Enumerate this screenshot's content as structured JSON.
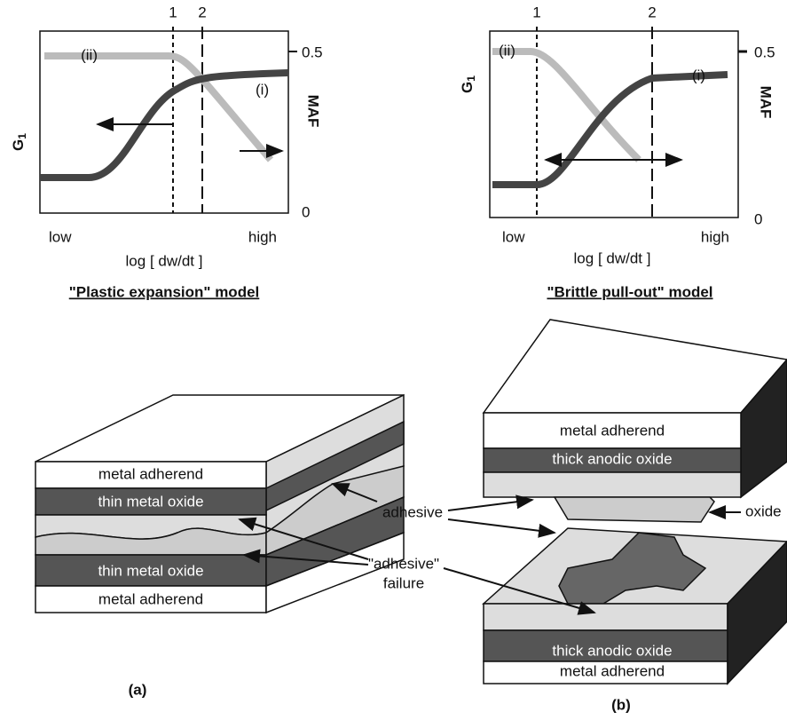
{
  "panels": [
    {
      "graph": {
        "markers": [
          "1",
          "2"
        ],
        "right_ticks": [
          "0.5",
          "0"
        ],
        "y_label": "G",
        "y_label_sub": "1",
        "y2_label": "MAF",
        "curve_labels": [
          "(ii)",
          "(i)"
        ],
        "x_low": "low",
        "x_high": "high",
        "x_label": "log [ dw/dt ]"
      },
      "model_title": "\"Plastic expansion\" model",
      "layers": [
        "metal adherend",
        "thin metal oxide",
        "thin metal oxide",
        "metal adherend"
      ],
      "panel_label": "(a)"
    },
    {
      "graph": {
        "markers": [
          "1",
          "2"
        ],
        "right_ticks": [
          "0.5",
          "0"
        ],
        "y_label": "G",
        "y_label_sub": "1",
        "y2_label": "MAF",
        "curve_labels": [
          "(ii)",
          "(i)"
        ],
        "x_low": "low",
        "x_high": "high",
        "x_label": "log [ dw/dt ]"
      },
      "model_title": "\"Brittle pull-out\" model",
      "layers": [
        "metal adherend",
        "thick anodic oxide",
        "thick anodic oxide",
        "metal adherend"
      ],
      "panel_label": "(b)"
    }
  ],
  "callouts": {
    "adhesive": "adhesive",
    "failure": [
      "\"adhesive\"",
      "failure"
    ],
    "oxide": "oxide"
  }
}
